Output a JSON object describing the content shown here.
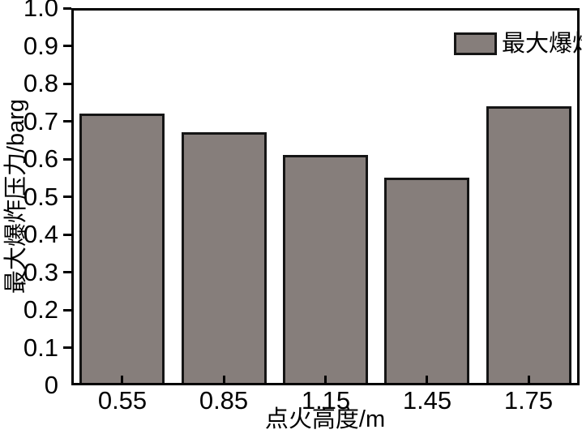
{
  "figure": {
    "background": "#ffffff"
  },
  "chart_data": {
    "type": "bar",
    "title": "",
    "categories": [
      "0.55",
      "0.85",
      "1.15",
      "1.45",
      "1.75"
    ],
    "values": [
      0.72,
      0.67,
      0.61,
      0.55,
      0.74
    ],
    "series": [
      {
        "name": "最大爆炸压力",
        "values": [
          0.72,
          0.67,
          0.61,
          0.55,
          0.74
        ]
      }
    ],
    "xlabel": "点火高度/m",
    "ylabel": "最大爆炸压力/barg",
    "ylim": [
      0,
      1.0
    ],
    "y_ticks": [
      "0",
      "0.1",
      "0.2",
      "0.3",
      "0.4",
      "0.5",
      "0.6",
      "0.7",
      "0.8",
      "0.9",
      "1.0"
    ],
    "grid": false,
    "legend": {
      "position": "top-right",
      "entries": [
        "最大爆炸压力"
      ]
    },
    "colors": {
      "bar_fill": "#867e7b",
      "bar_border": "#151515",
      "axis": "#000000",
      "text": "#000000"
    }
  }
}
